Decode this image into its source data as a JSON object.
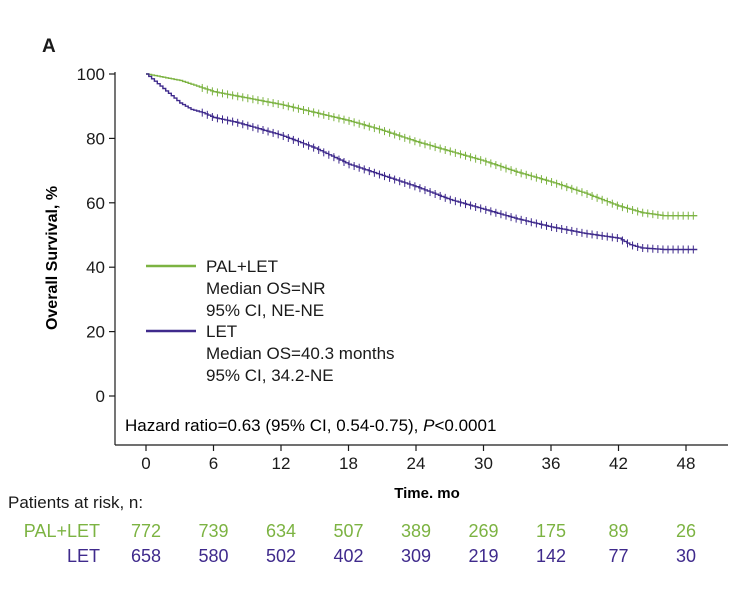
{
  "panel_label": "A",
  "colors": {
    "pal_let": "#7cb342",
    "let": "#3f2a8c",
    "axis": "#1a1a1a"
  },
  "chart_data": {
    "type": "line",
    "title": "",
    "xlabel": "Time. mo",
    "ylabel": "Overall Survival, %",
    "xlim": [
      0,
      50
    ],
    "ylim": [
      0,
      100
    ],
    "xticks": [
      0,
      6,
      12,
      18,
      24,
      30,
      36,
      42,
      48
    ],
    "yticks": [
      0,
      20,
      40,
      60,
      80,
      100
    ],
    "grid": false,
    "series": [
      {
        "name": "PAL+LET",
        "color": "#7cb342",
        "x": [
          0,
          3,
          6,
          9,
          12,
          15,
          18,
          21,
          24,
          27,
          30,
          33,
          36,
          39,
          42,
          44,
          46,
          49
        ],
        "y": [
          100,
          98,
          94.5,
          92.5,
          90.5,
          88,
          85.5,
          82.5,
          79,
          76,
          73,
          69.5,
          66.5,
          63,
          59,
          57,
          56,
          56
        ]
      },
      {
        "name": "LET",
        "color": "#3f2a8c",
        "x": [
          0,
          1,
          2,
          3,
          4,
          5,
          6,
          8,
          10,
          12,
          15,
          18,
          21,
          24,
          27,
          30,
          33,
          36,
          39,
          42,
          43,
          44,
          46,
          49
        ],
        "y": [
          100,
          97,
          94,
          91,
          89,
          88,
          86.5,
          85,
          83,
          81,
          77,
          72,
          68.5,
          65,
          61,
          58,
          55,
          52.5,
          50.5,
          49,
          47,
          46,
          45.5,
          45.5
        ]
      }
    ],
    "legend": {
      "placement": "lower-left",
      "entries": [
        {
          "name": "PAL+LET",
          "lines": [
            "Median OS=NR",
            "95% CI, NE-NE"
          ]
        },
        {
          "name": "LET",
          "lines": [
            "Median OS=40.3 months",
            "95% CI, 34.2-NE"
          ]
        }
      ]
    },
    "annotation": {
      "prefix": "Hazard ratio=0.63 (95% CI, 0.54-0.75), ",
      "p_label": "P",
      "p_value": "<0.0001"
    },
    "risk_table": {
      "title": "Patients at risk, n:",
      "rows": [
        {
          "label": "PAL+LET",
          "values": [
            772,
            739,
            634,
            507,
            389,
            269,
            175,
            89,
            26
          ]
        },
        {
          "label": "LET",
          "values": [
            658,
            580,
            502,
            402,
            309,
            219,
            142,
            77,
            30
          ]
        }
      ]
    }
  }
}
